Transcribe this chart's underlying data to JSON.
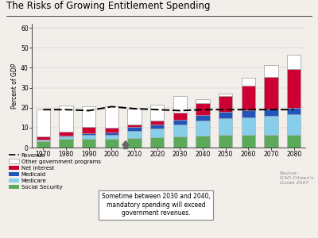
{
  "title": "The Risks of Growing Entitlement Spending",
  "ylabel": "Percent of GDP",
  "years": [
    1970,
    1980,
    1990,
    2000,
    2010,
    2020,
    2030,
    2040,
    2050,
    2060,
    2070,
    2080
  ],
  "social_security": [
    3.3,
    4.3,
    4.5,
    4.2,
    4.8,
    5.0,
    5.5,
    6.0,
    6.2,
    6.3,
    6.4,
    6.5
  ],
  "medicare": [
    0.5,
    1.2,
    1.8,
    2.2,
    3.5,
    4.5,
    6.0,
    7.5,
    8.5,
    9.0,
    9.5,
    10.0
  ],
  "medicaid": [
    0.3,
    0.5,
    0.8,
    1.2,
    2.0,
    2.2,
    2.5,
    2.8,
    3.0,
    3.2,
    3.3,
    3.4
  ],
  "net_interest": [
    1.5,
    1.9,
    3.2,
    2.3,
    1.4,
    1.8,
    3.5,
    6.0,
    8.0,
    12.5,
    16.0,
    19.5
  ],
  "other_programs": [
    13.4,
    13.1,
    10.5,
    10.9,
    7.8,
    8.0,
    8.5,
    2.0,
    1.5,
    4.0,
    6.0,
    7.0
  ],
  "revenue": [
    19.0,
    19.0,
    18.5,
    20.5,
    19.5,
    19.0,
    18.5,
    19.0,
    19.0,
    19.0,
    19.0,
    19.0
  ],
  "color_social_security": "#5aaa5a",
  "color_medicare": "#87ceeb",
  "color_medicaid": "#2255bb",
  "color_net_interest": "#cc0033",
  "color_other_programs": "#ffffff",
  "bar_edge_color": "#aaaaaa",
  "ylim": [
    0,
    62
  ],
  "yticks": [
    0,
    10,
    20,
    30,
    40,
    50,
    60
  ],
  "annotation_text": "Sometime between 2030 and 2040,\nmandatory spending will exceed\ngovernment revenues.",
  "source_text": "Source:\nGAO Citizen's\nGuide 2007",
  "bg_color": "#f2eeea"
}
